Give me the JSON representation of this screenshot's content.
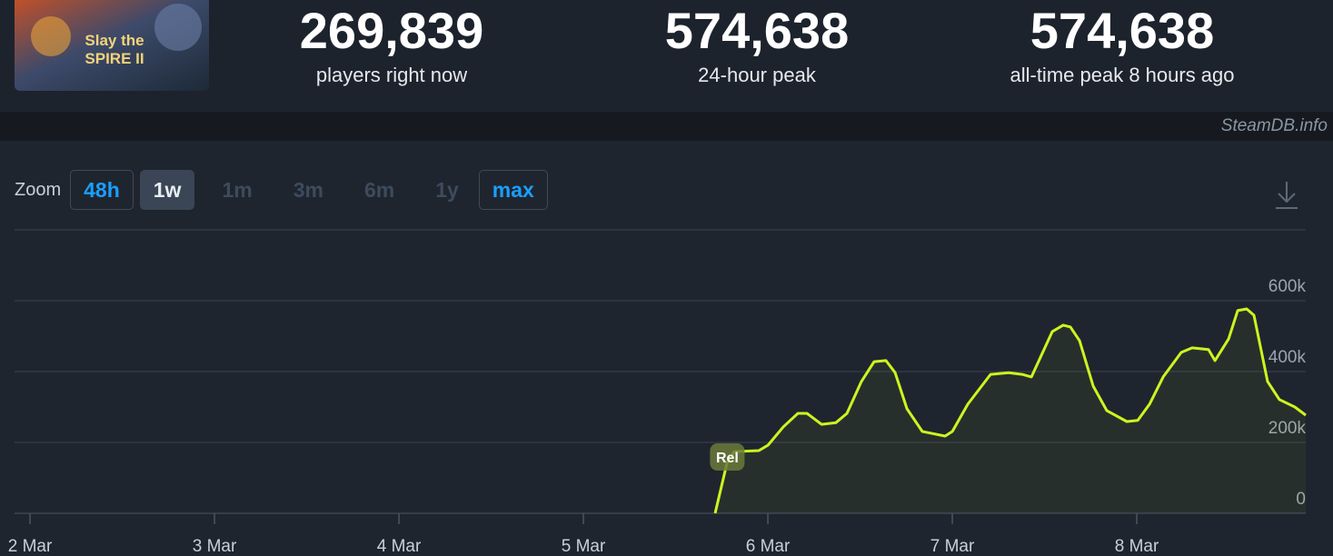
{
  "stats": [
    {
      "value": "269,839",
      "label": "players right now"
    },
    {
      "value": "574,638",
      "label": "24-hour peak"
    },
    {
      "value": "574,638",
      "label": "all-time peak 8 hours ago"
    }
  ],
  "credit": "SteamDB.info",
  "zoom": {
    "label": "Zoom",
    "options": [
      "48h",
      "1w",
      "1m",
      "3m",
      "6m",
      "1y",
      "max"
    ]
  },
  "chart_data": {
    "type": "line",
    "series": [
      {
        "name": "Players",
        "color": "#ccf51f",
        "x": [
          5.714,
          5.778,
          5.818,
          5.951,
          6.0,
          6.084,
          6.163,
          6.212,
          6.291,
          6.369,
          6.429,
          6.507,
          6.576,
          6.64,
          6.69,
          6.754,
          6.837,
          6.961,
          7.0,
          7.084,
          7.207,
          7.305,
          7.379,
          7.429,
          7.542,
          7.601,
          7.64,
          7.69,
          7.764,
          7.837,
          7.946,
          8.005,
          8.069,
          8.143,
          8.241,
          8.3,
          8.389,
          8.424,
          8.498,
          8.547,
          8.596,
          8.635,
          8.709,
          8.773,
          8.857,
          8.916
        ],
        "values": [
          0,
          141000,
          174000,
          177000,
          192000,
          244000,
          282000,
          282000,
          251000,
          256000,
          282000,
          372000,
          428000,
          431000,
          397000,
          295000,
          231000,
          218000,
          231000,
          308000,
          392000,
          397000,
          392000,
          385000,
          513000,
          531000,
          526000,
          487000,
          359000,
          290000,
          259000,
          262000,
          308000,
          385000,
          454000,
          467000,
          462000,
          431000,
          492000,
          572000,
          577000,
          559000,
          372000,
          321000,
          300000,
          277000
        ]
      }
    ],
    "xlim": [
      1.916,
      8.916
    ],
    "xticks": [
      {
        "value": 2,
        "label": "2 Mar"
      },
      {
        "value": 3,
        "label": "3 Mar"
      },
      {
        "value": 4,
        "label": "4 Mar"
      },
      {
        "value": 5,
        "label": "5 Mar"
      },
      {
        "value": 6,
        "label": "6 Mar"
      },
      {
        "value": 7,
        "label": "7 Mar"
      },
      {
        "value": 8,
        "label": "8 Mar"
      }
    ],
    "ylim": [
      0,
      800000
    ],
    "yticks": [
      0,
      {
        "value": 200000,
        "label": "200k"
      },
      {
        "value": 400000,
        "label": "400k"
      },
      {
        "value": 600000,
        "label": "600k"
      }
    ],
    "grid": true,
    "annotations": [
      {
        "text": "Rel",
        "x": 5.78
      }
    ]
  }
}
